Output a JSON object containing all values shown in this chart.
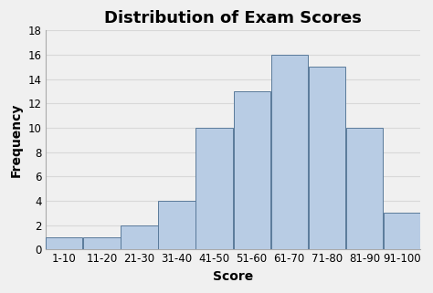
{
  "title": "Distribution of Exam Scores",
  "xlabel": "Score",
  "ylabel": "Frequency",
  "categories": [
    "1-10",
    "11-20",
    "21-30",
    "31-40",
    "41-50",
    "51-60",
    "61-70",
    "71-80",
    "81-90",
    "91-100"
  ],
  "values": [
    1,
    1,
    2,
    4,
    10,
    13,
    16,
    15,
    10,
    3
  ],
  "bar_color": "#b8cce4",
  "bar_edge_color": "#5a7a9a",
  "ylim": [
    0,
    18
  ],
  "yticks": [
    0,
    2,
    4,
    6,
    8,
    10,
    12,
    14,
    16,
    18
  ],
  "title_fontsize": 13,
  "label_fontsize": 10,
  "tick_fontsize": 8.5,
  "background_color": "#f0f0f0",
  "plot_bg_color": "#f0f0f0",
  "grid_color": "#d8d8d8",
  "bar_gap": 0.02
}
